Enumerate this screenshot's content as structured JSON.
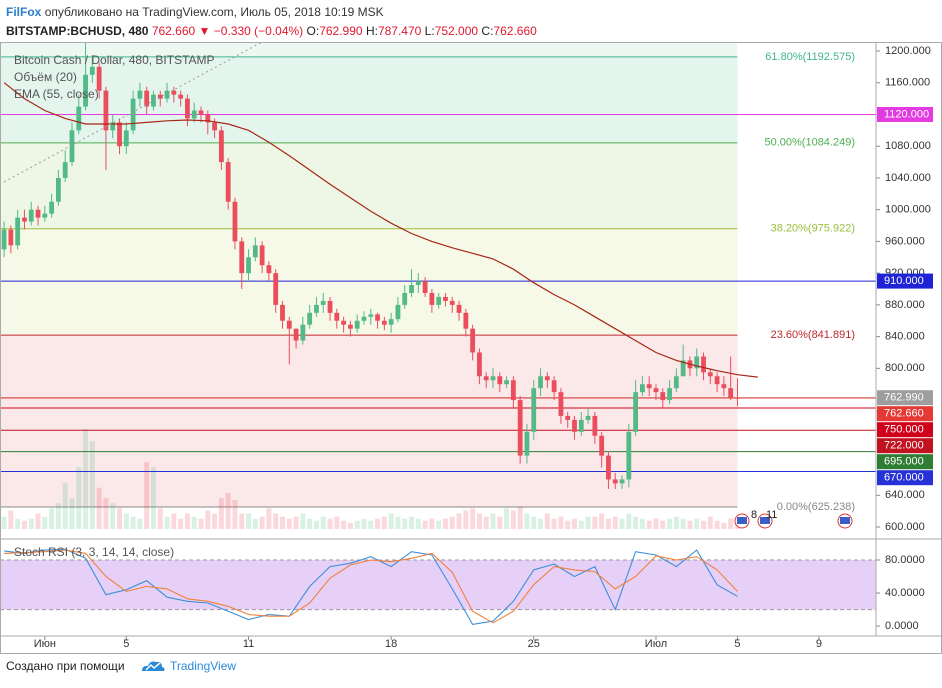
{
  "header": {
    "author": "FilFox",
    "published": "опубликовано на TradingView.com, Июль 05, 2018 10:19 MSK",
    "symbol": "BITSTAMP:BCHUSD, 480",
    "last": "762.660",
    "arrow": "▼",
    "change": "−0.330 (−0.04%)",
    "ohlc": [
      {
        "key": "O:",
        "value": "762.990"
      },
      {
        "key": "H:",
        "value": "787.470"
      },
      {
        "key": "L:",
        "value": "752.000"
      },
      {
        "key": "C:",
        "value": "762.660"
      }
    ]
  },
  "chart_data": [
    {
      "type": "candlestick",
      "title": "Bitcoin Cash / Dollar, 480, BITSTAMP",
      "up_color": "#53b987",
      "down_color": "#eb4d5c",
      "open": [
        950,
        975,
        955,
        990,
        985,
        1000,
        990,
        995,
        1010,
        1040,
        1060,
        1100,
        1130,
        1170,
        1180,
        1150,
        1100,
        1110,
        1080,
        1100,
        1140,
        1150,
        1130,
        1145,
        1140,
        1150,
        1145,
        1140,
        1115,
        1125,
        1120,
        1110,
        1100,
        1060,
        1010,
        960,
        920,
        940,
        955,
        930,
        920,
        880,
        860,
        850,
        835,
        855,
        870,
        880,
        885,
        870,
        860,
        855,
        850,
        860,
        865,
        868,
        860,
        855,
        862,
        880,
        895,
        905,
        910,
        895,
        880,
        890,
        885,
        880,
        870,
        850,
        820,
        790,
        785,
        790,
        780,
        785,
        760,
        690,
        720,
        775,
        790,
        785,
        770,
        740,
        735,
        720,
        735,
        740,
        715,
        690,
        660,
        655,
        660,
        720,
        770,
        780,
        775,
        770,
        760,
        775,
        790,
        810,
        800,
        815,
        795,
        790,
        780,
        775,
        762.99
      ],
      "high": [
        985,
        980,
        1000,
        1000,
        1010,
        1005,
        1005,
        1020,
        1050,
        1075,
        1110,
        1145,
        1210,
        1195,
        1185,
        1155,
        1120,
        1115,
        1110,
        1150,
        1160,
        1155,
        1150,
        1150,
        1160,
        1155,
        1150,
        1145,
        1135,
        1130,
        1125,
        1115,
        1105,
        1065,
        1015,
        965,
        950,
        965,
        960,
        935,
        925,
        885,
        865,
        850,
        865,
        880,
        890,
        895,
        890,
        875,
        865,
        860,
        868,
        872,
        875,
        870,
        865,
        870,
        890,
        905,
        925,
        920,
        915,
        900,
        895,
        895,
        890,
        885,
        875,
        855,
        825,
        795,
        800,
        795,
        790,
        790,
        765,
        730,
        785,
        800,
        795,
        790,
        775,
        745,
        740,
        745,
        750,
        745,
        720,
        695,
        668,
        665,
        730,
        785,
        790,
        790,
        780,
        775,
        785,
        800,
        830,
        815,
        825,
        820,
        800,
        795,
        790,
        815,
        787.47
      ],
      "low": [
        940,
        945,
        950,
        975,
        980,
        980,
        985,
        990,
        1005,
        1035,
        1055,
        1095,
        1125,
        1160,
        1140,
        1050,
        1090,
        1070,
        1070,
        1095,
        1130,
        1120,
        1125,
        1130,
        1135,
        1135,
        1130,
        1105,
        1110,
        1110,
        1095,
        1090,
        1050,
        1000,
        950,
        900,
        910,
        935,
        920,
        910,
        870,
        850,
        805,
        825,
        830,
        850,
        865,
        870,
        860,
        850,
        845,
        840,
        845,
        855,
        855,
        850,
        848,
        845,
        858,
        875,
        890,
        895,
        890,
        870,
        875,
        878,
        870,
        860,
        840,
        810,
        780,
        775,
        775,
        770,
        775,
        750,
        680,
        680,
        710,
        765,
        775,
        760,
        730,
        725,
        710,
        715,
        730,
        705,
        675,
        648,
        648,
        648,
        650,
        715,
        765,
        765,
        760,
        750,
        755,
        770,
        795,
        790,
        790,
        785,
        780,
        770,
        765,
        760,
        752
      ],
      "close": [
        975,
        955,
        990,
        985,
        1000,
        990,
        995,
        1010,
        1040,
        1060,
        1100,
        1130,
        1170,
        1180,
        1150,
        1100,
        1110,
        1080,
        1100,
        1140,
        1150,
        1130,
        1145,
        1140,
        1150,
        1145,
        1140,
        1115,
        1125,
        1120,
        1110,
        1100,
        1060,
        1010,
        960,
        920,
        940,
        955,
        930,
        920,
        880,
        860,
        850,
        835,
        855,
        870,
        880,
        885,
        870,
        860,
        855,
        850,
        860,
        865,
        868,
        860,
        855,
        862,
        880,
        895,
        905,
        910,
        895,
        880,
        890,
        885,
        880,
        870,
        850,
        820,
        790,
        785,
        790,
        780,
        785,
        760,
        690,
        720,
        775,
        790,
        785,
        770,
        740,
        735,
        720,
        735,
        740,
        715,
        690,
        660,
        655,
        660,
        720,
        770,
        780,
        775,
        770,
        760,
        775,
        790,
        810,
        800,
        815,
        795,
        790,
        780,
        775,
        762.99,
        762.66
      ],
      "volume": {
        "name": "Объём (20)",
        "values": [
          12,
          18,
          10,
          8,
          10,
          15,
          12,
          20,
          25,
          45,
          30,
          60,
          97,
          85,
          40,
          30,
          25,
          20,
          15,
          12,
          10,
          65,
          60,
          20,
          12,
          15,
          10,
          15,
          12,
          10,
          18,
          15,
          30,
          35,
          28,
          15,
          15,
          10,
          12,
          20,
          15,
          12,
          10,
          12,
          15,
          10,
          8,
          12,
          10,
          12,
          8,
          6,
          8,
          10,
          8,
          10,
          12,
          15,
          12,
          10,
          12,
          10,
          8,
          10,
          8,
          10,
          12,
          15,
          18,
          20,
          15,
          12,
          15,
          12,
          20,
          18,
          22,
          15,
          12,
          10,
          15,
          10,
          12,
          8,
          10,
          8,
          12,
          12,
          15,
          10,
          12,
          10,
          15,
          12,
          10,
          8,
          10,
          8,
          10,
          12,
          10,
          8,
          10,
          8,
          12,
          8,
          6,
          10,
          5
        ]
      },
      "ema": {
        "name": "EMA (55, close)",
        "color": "#a52714",
        "x": [
          0,
          3,
          6,
          9,
          12,
          15,
          18,
          21,
          24,
          27,
          30,
          33,
          36,
          39,
          42,
          45,
          48,
          51,
          54,
          57,
          60,
          63,
          66,
          69,
          72,
          75,
          78,
          81,
          84,
          87,
          90,
          93,
          96,
          99,
          102,
          105,
          108,
          111
        ],
        "values": [
          1160,
          1140,
          1125,
          1115,
          1108,
          1108,
          1108,
          1110,
          1112,
          1113,
          1112,
          1108,
          1100,
          1085,
          1068,
          1050,
          1032,
          1015,
          998,
          983,
          970,
          960,
          952,
          945,
          938,
          925,
          908,
          893,
          880,
          865,
          850,
          835,
          820,
          810,
          803,
          797,
          792,
          789
        ]
      },
      "fib": [
        {
          "value": 1192.575,
          "label": "61.80%(1192.575)",
          "color": "#3fb58f",
          "fill": "#edf8f3"
        },
        {
          "value": 1084.249,
          "label": "50.00%(1084.249)",
          "color": "#4caf50",
          "fill": "#e4f5ee"
        },
        {
          "value": 975.922,
          "label": "38.20%(975.922)",
          "color": "#9bbf3a",
          "fill": "#eef7e6"
        },
        {
          "value": 841.891,
          "label": "23.60%(841.891)",
          "color": "#c0282d",
          "fill": "#f6f8e8"
        },
        {
          "value": 625.238,
          "label": "0.00%(625.238)",
          "color": "#888888",
          "fill": "#fbe8e9"
        }
      ],
      "hlines": [
        {
          "value": 1120,
          "label": "1120.000",
          "color": "#e23be2"
        },
        {
          "value": 910,
          "label": "910.000",
          "color": "#1f23d6"
        },
        {
          "value": 762.99,
          "label": "762.990",
          "color": "#9e9e9e"
        },
        {
          "value": 762.66,
          "label": "762.660",
          "color": "#e53935"
        },
        {
          "value": 750,
          "label": "750.000",
          "color": "#d0021b"
        },
        {
          "value": 722,
          "label": "722.000",
          "color": "#c2121f"
        },
        {
          "value": 695,
          "label": "695.000",
          "color": "#2e7d32"
        },
        {
          "value": 670,
          "label": "670.000",
          "color": "#2632d8"
        }
      ],
      "events": [
        "8",
        "11"
      ],
      "ylim": [
        587.4,
        1210.1
      ],
      "yticks": [
        {
          "value": 1200,
          "label": "1200.000"
        },
        {
          "value": 1160,
          "label": "1160.000"
        },
        {
          "value": 1080,
          "label": "1080.000"
        },
        {
          "value": 1040,
          "label": "1040.000"
        },
        {
          "value": 1000,
          "label": "1000.000"
        },
        {
          "value": 960,
          "label": "960.000"
        },
        {
          "value": 920,
          "label": "920.000"
        },
        {
          "value": 880,
          "label": "880.000"
        },
        {
          "value": 840,
          "label": "840.000"
        },
        {
          "value": 800,
          "label": "800.000"
        },
        {
          "value": 640,
          "label": "640.000"
        },
        {
          "value": 600,
          "label": "600.000"
        }
      ],
      "xlim": [
        -0.6,
        128.4
      ],
      "xticks": [
        {
          "value": 6,
          "label": "Июн"
        },
        {
          "value": 18,
          "label": "5"
        },
        {
          "value": 36,
          "label": "11"
        },
        {
          "value": 57,
          "label": "18"
        },
        {
          "value": 78,
          "label": "25"
        },
        {
          "value": 96,
          "label": "Июл"
        },
        {
          "value": 108,
          "label": "5"
        },
        {
          "value": 120,
          "label": "9"
        }
      ]
    },
    {
      "type": "line",
      "title": "Stoch RSI (3, 3, 14, 14, close)",
      "x": [
        0,
        3,
        6,
        9,
        12,
        15,
        18,
        21,
        24,
        27,
        30,
        33,
        36,
        39,
        42,
        45,
        48,
        51,
        54,
        57,
        60,
        63,
        66,
        69,
        72,
        75,
        78,
        81,
        84,
        87,
        90,
        93,
        96,
        99,
        102,
        105,
        108
      ],
      "series": [
        {
          "color": "#3d8fd8",
          "values": [
            91,
            88,
            92,
            93,
            82,
            38,
            44,
            55,
            35,
            30,
            28,
            18,
            8,
            14,
            12,
            48,
            72,
            76,
            84,
            72,
            90,
            86,
            45,
            2,
            6,
            30,
            68,
            75,
            60,
            72,
            20,
            90,
            86,
            72,
            92,
            50,
            36
          ]
        },
        {
          "color": "#f0803c",
          "values": [
            88,
            89,
            90,
            92,
            88,
            60,
            42,
            48,
            45,
            33,
            30,
            24,
            14,
            12,
            12,
            28,
            58,
            74,
            80,
            78,
            82,
            88,
            65,
            18,
            4,
            18,
            50,
            72,
            68,
            66,
            45,
            60,
            85,
            80,
            84,
            68,
            42
          ]
        }
      ],
      "band": [
        20,
        80
      ],
      "band_color": "#e3c8f7",
      "ylim": [
        -12,
        103
      ],
      "yticks": [
        {
          "value": 80,
          "label": "80.0000"
        },
        {
          "value": 40,
          "label": "40.0000"
        },
        {
          "value": 0,
          "label": "0.0000"
        }
      ]
    }
  ],
  "footer": {
    "text": "Создано при помощи",
    "brand": "TradingView"
  }
}
